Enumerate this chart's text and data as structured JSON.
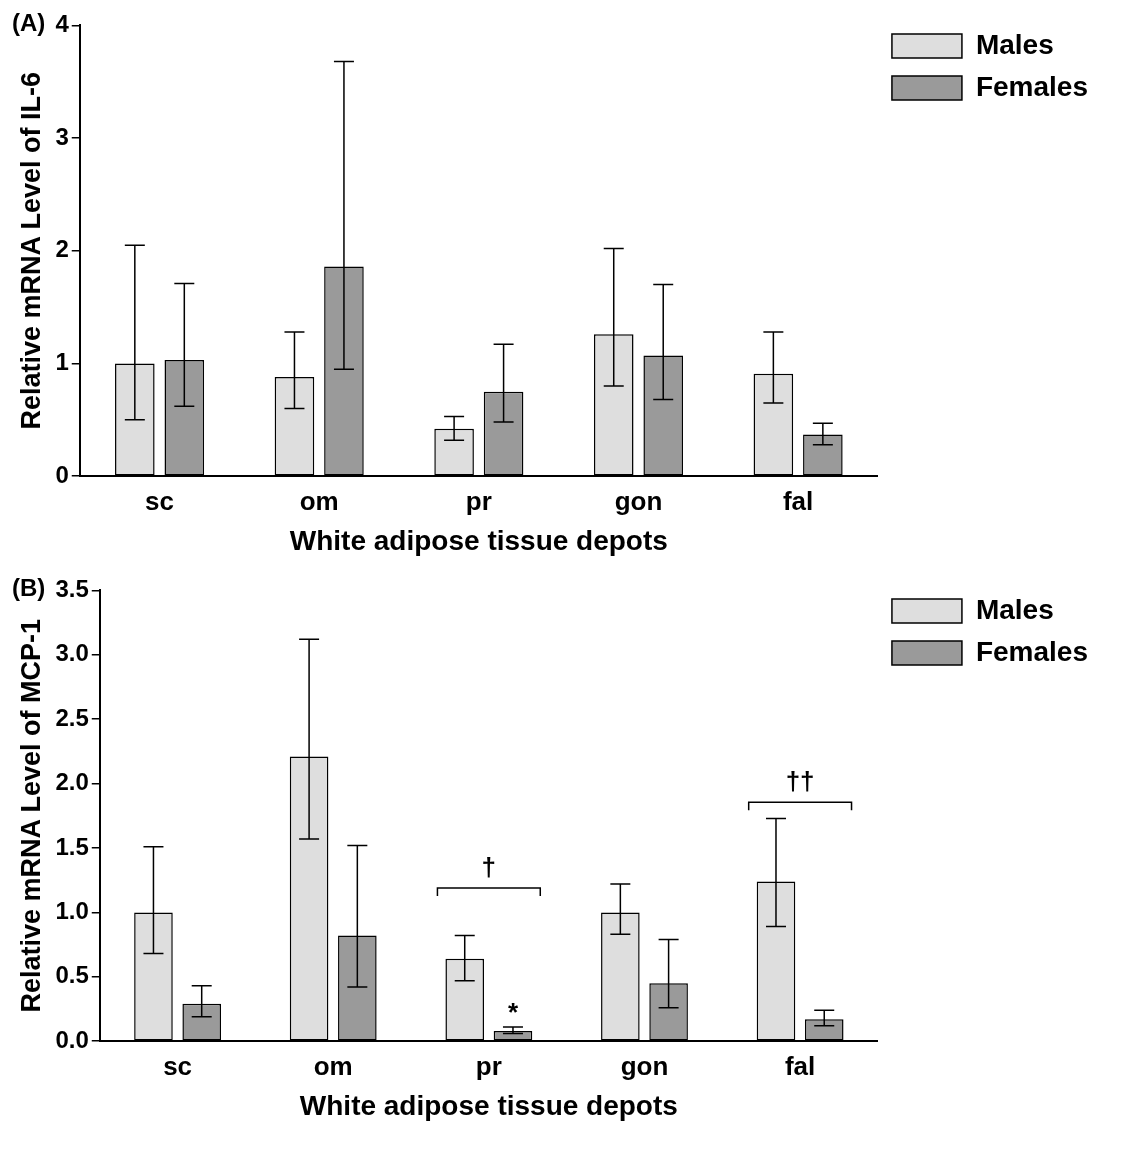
{
  "chart_data": [
    {
      "type": "bar",
      "ylabel": "Relative mRNA Level of IL-6",
      "xlabel": "White adipose tissue depots",
      "categories": [
        "sc",
        "om",
        "pr",
        "gon",
        "fal"
      ],
      "ylim": [
        0,
        4
      ],
      "yticks": [
        0,
        1,
        2,
        3,
        4
      ],
      "legend": "top right",
      "annotations": [
        "(A)"
      ],
      "series": [
        {
          "name": "Males",
          "color": "#dedede",
          "values": [
            1.0,
            0.88,
            0.42,
            1.26,
            0.91
          ],
          "errors": [
            [
              0.5,
              2.05
            ],
            [
              0.6,
              1.28
            ],
            [
              0.32,
              0.53
            ],
            [
              0.8,
              2.02
            ],
            [
              0.65,
              1.28
            ]
          ]
        },
        {
          "name": "Females",
          "color": "#9a9a9a",
          "values": [
            1.03,
            1.86,
            0.75,
            1.07,
            0.37
          ],
          "errors": [
            [
              0.62,
              1.71
            ],
            [
              0.95,
              3.68
            ],
            [
              0.48,
              1.17
            ],
            [
              0.68,
              1.7
            ],
            [
              0.28,
              0.47
            ]
          ]
        }
      ]
    },
    {
      "type": "bar",
      "ylabel": "Relative mRNA Level of MCP-1",
      "xlabel": "White adipose tissue depots",
      "categories": [
        "sc",
        "om",
        "pr",
        "gon",
        "fal"
      ],
      "ylim": [
        0,
        3.5
      ],
      "yticks": [
        {
          "value": 0,
          "label": "0.0"
        },
        {
          "value": 0.5,
          "label": "0.5"
        },
        {
          "value": 1,
          "label": "1.0"
        },
        {
          "value": 1.5,
          "label": "1.5"
        },
        {
          "value": 2,
          "label": "2.0"
        },
        {
          "value": 2.5,
          "label": "2.5"
        },
        {
          "value": 3,
          "label": "3.0"
        },
        {
          "value": 3.5,
          "label": "3.5"
        }
      ],
      "legend": "top right",
      "annotations": [
        "(B)",
        "†",
        "*",
        "††"
      ],
      "series": [
        {
          "name": "Males",
          "color": "#dedede",
          "values": [
            1.0,
            2.21,
            0.64,
            1.0,
            1.24
          ],
          "errors": [
            [
              0.68,
              1.51
            ],
            [
              1.57,
              3.12
            ],
            [
              0.47,
              0.82
            ],
            [
              0.83,
              1.22
            ],
            [
              0.89,
              1.73
            ]
          ]
        },
        {
          "name": "Females",
          "color": "#9a9a9a",
          "values": [
            0.29,
            0.82,
            0.08,
            0.45,
            0.17
          ],
          "errors": [
            [
              0.19,
              0.43
            ],
            [
              0.42,
              1.52
            ],
            [
              0.06,
              0.11
            ],
            [
              0.26,
              0.79
            ],
            [
              0.12,
              0.24
            ]
          ]
        }
      ]
    }
  ]
}
